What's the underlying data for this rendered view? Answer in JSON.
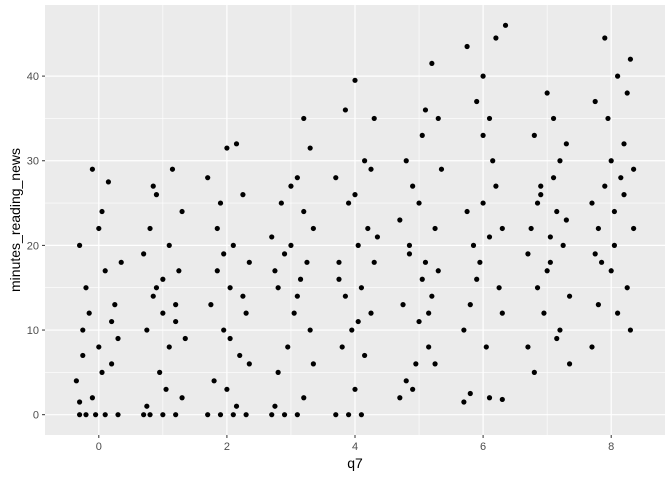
{
  "chart_data": {
    "type": "scatter",
    "xlabel": "q7",
    "ylabel": "minutes_reading_news",
    "xlim": [
      -0.84,
      8.84
    ],
    "ylim": [
      -2.4,
      48.4
    ],
    "xticks": [
      0,
      2,
      4,
      6,
      8
    ],
    "yticks": [
      0,
      10,
      20,
      30,
      40
    ],
    "grid": true,
    "jitter": true,
    "point_color": "#000000",
    "panel_background": "#ebebeb",
    "points": [
      [
        -0.3,
        0
      ],
      [
        -0.2,
        0
      ],
      [
        -0.05,
        0
      ],
      [
        0.1,
        0
      ],
      [
        0.3,
        0
      ],
      [
        -0.35,
        4
      ],
      [
        -0.25,
        10
      ],
      [
        -0.15,
        12
      ],
      [
        0,
        8
      ],
      [
        0.2,
        6
      ],
      [
        -0.3,
        20
      ],
      [
        -0.1,
        29
      ],
      [
        0.05,
        24
      ],
      [
        0.15,
        27.5
      ],
      [
        0.25,
        13
      ],
      [
        0.35,
        18
      ],
      [
        -0.2,
        15
      ],
      [
        0.1,
        17
      ],
      [
        0,
        22
      ],
      [
        -0.1,
        2
      ],
      [
        0.3,
        9
      ],
      [
        -0.25,
        7
      ],
      [
        0.2,
        11
      ],
      [
        0.05,
        5
      ],
      [
        -0.3,
        1.5
      ],
      [
        0.7,
        0
      ],
      [
        0.8,
        0
      ],
      [
        1.0,
        0
      ],
      [
        1.2,
        0
      ],
      [
        0.75,
        10
      ],
      [
        0.9,
        15
      ],
      [
        1.1,
        20
      ],
      [
        1.3,
        24
      ],
      [
        0.85,
        27
      ],
      [
        1.15,
        29
      ],
      [
        1.0,
        12
      ],
      [
        1.25,
        17
      ],
      [
        0.7,
        19
      ],
      [
        0.95,
        5
      ],
      [
        1.05,
        3
      ],
      [
        1.35,
        9
      ],
      [
        0.8,
        22
      ],
      [
        1.2,
        13
      ],
      [
        1.1,
        8
      ],
      [
        0.9,
        26
      ],
      [
        1.3,
        2
      ],
      [
        0.75,
        1
      ],
      [
        1.0,
        16
      ],
      [
        1.2,
        11
      ],
      [
        0.85,
        14
      ],
      [
        1.7,
        0
      ],
      [
        1.9,
        0
      ],
      [
        2.1,
        0
      ],
      [
        2.3,
        0
      ],
      [
        1.75,
        13
      ],
      [
        1.85,
        22
      ],
      [
        2.0,
        31.5
      ],
      [
        2.15,
        32
      ],
      [
        2.25,
        26
      ],
      [
        2.35,
        18
      ],
      [
        1.95,
        10
      ],
      [
        2.05,
        15
      ],
      [
        2.2,
        7
      ],
      [
        1.8,
        4
      ],
      [
        2.3,
        12
      ],
      [
        1.7,
        28
      ],
      [
        2.1,
        20
      ],
      [
        2.0,
        3
      ],
      [
        1.9,
        25
      ],
      [
        2.25,
        14
      ],
      [
        2.35,
        6
      ],
      [
        1.85,
        17
      ],
      [
        2.05,
        9
      ],
      [
        2.15,
        1
      ],
      [
        1.95,
        19
      ],
      [
        2.7,
        0
      ],
      [
        2.9,
        0
      ],
      [
        3.1,
        0
      ],
      [
        2.75,
        1
      ],
      [
        3.2,
        2
      ],
      [
        2.8,
        15
      ],
      [
        3.0,
        20
      ],
      [
        3.1,
        28
      ],
      [
        3.2,
        35
      ],
      [
        3.3,
        31.5
      ],
      [
        2.85,
        25
      ],
      [
        3.05,
        12
      ],
      [
        3.25,
        18
      ],
      [
        3.35,
        22
      ],
      [
        2.95,
        8
      ],
      [
        3.15,
        16
      ],
      [
        2.7,
        21
      ],
      [
        3.0,
        27
      ],
      [
        3.3,
        10
      ],
      [
        2.8,
        5
      ],
      [
        3.1,
        14
      ],
      [
        2.9,
        19
      ],
      [
        3.2,
        24
      ],
      [
        2.75,
        17
      ],
      [
        3.35,
        6
      ],
      [
        3.7,
        0
      ],
      [
        3.9,
        0
      ],
      [
        4.0,
        3
      ],
      [
        4.1,
        0
      ],
      [
        3.75,
        18
      ],
      [
        3.85,
        36
      ],
      [
        4.0,
        39.5
      ],
      [
        4.15,
        30
      ],
      [
        4.3,
        35
      ],
      [
        3.9,
        25
      ],
      [
        4.05,
        20
      ],
      [
        4.25,
        12
      ],
      [
        3.8,
        8
      ],
      [
        4.1,
        15
      ],
      [
        4.2,
        22
      ],
      [
        3.95,
        10
      ],
      [
        3.7,
        28
      ],
      [
        4.3,
        18
      ],
      [
        4.0,
        26
      ],
      [
        3.85,
        14
      ],
      [
        4.15,
        7
      ],
      [
        4.25,
        29
      ],
      [
        3.75,
        16
      ],
      [
        4.05,
        11
      ],
      [
        4.35,
        21
      ],
      [
        4.7,
        2
      ],
      [
        4.8,
        4
      ],
      [
        4.9,
        3
      ],
      [
        5.0,
        25
      ],
      [
        5.1,
        36
      ],
      [
        5.2,
        41.5
      ],
      [
        5.3,
        35
      ],
      [
        4.75,
        13
      ],
      [
        4.85,
        20
      ],
      [
        5.05,
        16
      ],
      [
        5.15,
        8
      ],
      [
        5.25,
        22
      ],
      [
        5.35,
        29
      ],
      [
        4.95,
        6
      ],
      [
        5.1,
        18
      ],
      [
        4.8,
        30
      ],
      [
        5.2,
        14
      ],
      [
        5.0,
        11
      ],
      [
        4.7,
        23
      ],
      [
        5.3,
        17
      ],
      [
        4.9,
        27
      ],
      [
        5.15,
        12
      ],
      [
        5.25,
        6
      ],
      [
        4.85,
        19
      ],
      [
        5.05,
        33
      ],
      [
        5.7,
        1.5
      ],
      [
        5.8,
        2.5
      ],
      [
        6.1,
        2
      ],
      [
        6.3,
        1.8
      ],
      [
        5.75,
        43.5
      ],
      [
        5.9,
        37
      ],
      [
        6.0,
        40
      ],
      [
        6.2,
        44.5
      ],
      [
        6.35,
        46
      ],
      [
        6.1,
        35
      ],
      [
        5.85,
        20
      ],
      [
        6.0,
        25
      ],
      [
        6.25,
        15
      ],
      [
        5.7,
        10
      ],
      [
        5.95,
        18
      ],
      [
        6.15,
        30
      ],
      [
        6.3,
        22
      ],
      [
        5.8,
        13
      ],
      [
        6.05,
        8
      ],
      [
        6.2,
        27
      ],
      [
        5.9,
        16
      ],
      [
        6.1,
        21
      ],
      [
        5.75,
        24
      ],
      [
        6.3,
        12
      ],
      [
        6.0,
        33
      ],
      [
        6.7,
        8
      ],
      [
        6.8,
        5
      ],
      [
        7.0,
        38
      ],
      [
        7.1,
        35
      ],
      [
        7.3,
        32
      ],
      [
        6.75,
        22
      ],
      [
        6.9,
        26
      ],
      [
        7.05,
        18
      ],
      [
        7.2,
        30
      ],
      [
        7.35,
        6
      ],
      [
        6.85,
        15
      ],
      [
        7.15,
        24
      ],
      [
        6.95,
        12
      ],
      [
        7.25,
        20
      ],
      [
        7.1,
        28
      ],
      [
        6.8,
        33
      ],
      [
        7.0,
        17
      ],
      [
        7.3,
        23
      ],
      [
        6.7,
        19
      ],
      [
        7.2,
        10
      ],
      [
        6.9,
        27
      ],
      [
        7.05,
        21
      ],
      [
        7.35,
        14
      ],
      [
        6.85,
        25
      ],
      [
        7.15,
        9
      ],
      [
        7.7,
        8
      ],
      [
        7.8,
        13
      ],
      [
        7.9,
        44.5
      ],
      [
        8.1,
        40
      ],
      [
        8.3,
        42
      ],
      [
        7.75,
        37
      ],
      [
        8.0,
        30
      ],
      [
        8.2,
        26
      ],
      [
        8.35,
        22
      ],
      [
        7.85,
        18
      ],
      [
        8.05,
        20
      ],
      [
        8.25,
        15
      ],
      [
        8.3,
        10
      ],
      [
        7.95,
        35
      ],
      [
        8.15,
        28
      ],
      [
        7.7,
        25
      ],
      [
        8.0,
        17
      ],
      [
        8.2,
        32
      ],
      [
        7.8,
        22
      ],
      [
        8.1,
        12
      ],
      [
        7.9,
        27
      ],
      [
        8.35,
        29
      ],
      [
        8.05,
        24
      ],
      [
        7.75,
        19
      ],
      [
        8.25,
        38
      ]
    ]
  }
}
